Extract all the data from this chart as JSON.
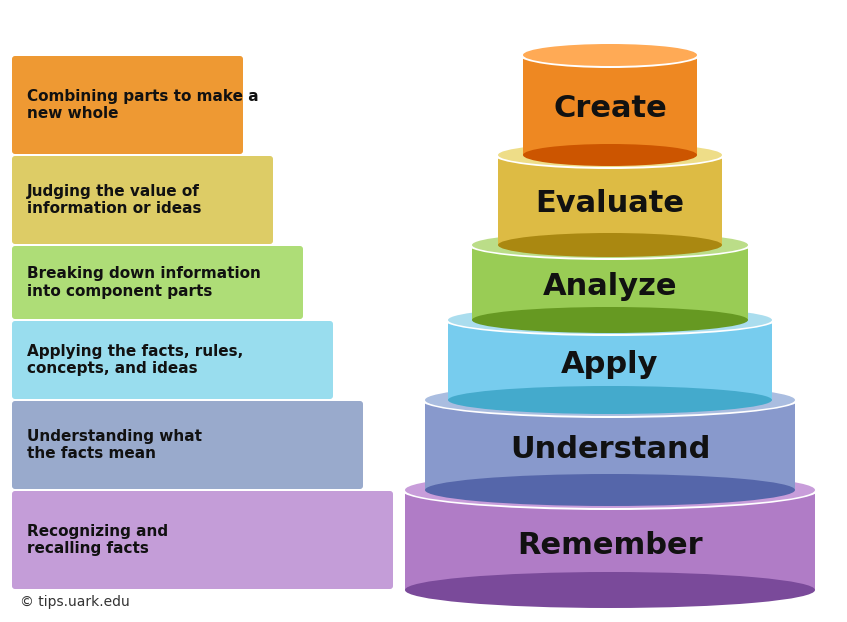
{
  "layers": [
    {
      "label": "Remember",
      "description": "Recognizing and\nrecalling facts",
      "face_color": "#b07cc6",
      "side_color": "#7a4a9a",
      "top_color": "#c89dda",
      "desc_bg": "#c49dd8",
      "row": 0
    },
    {
      "label": "Understand",
      "description": "Understanding what\nthe facts mean",
      "face_color": "#8899cc",
      "side_color": "#5566aa",
      "top_color": "#aabde0",
      "desc_bg": "#99aacc",
      "row": 1
    },
    {
      "label": "Apply",
      "description": "Applying the facts, rules,\nconcepts, and ideas",
      "face_color": "#77ccee",
      "side_color": "#44aacc",
      "top_color": "#aaddee",
      "desc_bg": "#99ddee",
      "row": 2
    },
    {
      "label": "Analyze",
      "description": "Breaking down information\ninto component parts",
      "face_color": "#99cc55",
      "side_color": "#669922",
      "top_color": "#bbdd88",
      "desc_bg": "#aedd77",
      "row": 3
    },
    {
      "label": "Evaluate",
      "description": "Judging the value of\ninformation or ideas",
      "face_color": "#ddbb44",
      "side_color": "#aa8811",
      "top_color": "#eedd88",
      "desc_bg": "#ddcc66",
      "row": 4
    },
    {
      "label": "Create",
      "description": "Combining parts to make a\nnew whole",
      "face_color": "#ee8822",
      "side_color": "#cc5500",
      "top_color": "#ffaa55",
      "desc_bg": "#ee9933",
      "row": 5
    }
  ],
  "bg_color": "#ffffff",
  "text_color": "#111111",
  "label_fontsize": 22,
  "desc_fontsize": 11,
  "copyright_text": "© tips.uark.edu"
}
